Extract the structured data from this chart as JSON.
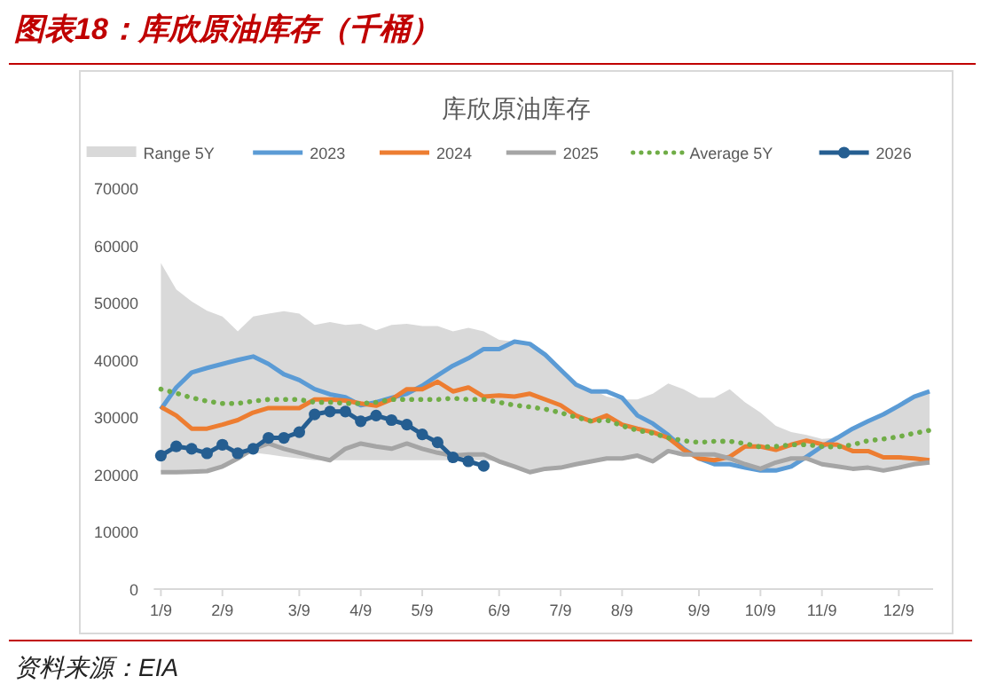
{
  "chart_data": {
    "type": "line",
    "title": "图表18：库欣原油库存（千桶）",
    "subtitle": "库欣原油库存",
    "annotations": [
      "资料来源：EIA"
    ],
    "categories": [
      "1/9",
      null,
      null,
      null,
      "2/9",
      null,
      null,
      null,
      null,
      "3/9",
      null,
      null,
      null,
      "4/9",
      null,
      null,
      null,
      "5/9",
      null,
      null,
      null,
      null,
      "6/9",
      null,
      null,
      null,
      "7/9",
      null,
      null,
      null,
      "8/9",
      null,
      null,
      null,
      null,
      "9/9",
      null,
      null,
      null,
      "10/9",
      null,
      null,
      null,
      "11/9",
      null,
      null,
      null,
      null,
      "12/9",
      null,
      null
    ],
    "ylim": [
      0,
      70000
    ],
    "yticks": [
      0,
      10000,
      20000,
      30000,
      40000,
      50000,
      60000,
      70000
    ],
    "legend": "top",
    "grid": false,
    "marker": "none",
    "line_style": "solid",
    "series": [
      {
        "name": "Range 5Y",
        "type": "area",
        "color": "#d9d9d9",
        "values": [
          null,
          null,
          null,
          null,
          null,
          null,
          null,
          null,
          null,
          null,
          null,
          null,
          null,
          null,
          null,
          null,
          null,
          null,
          null,
          null,
          null,
          null,
          null,
          null,
          null,
          null,
          null,
          null,
          null,
          null,
          null,
          null,
          null,
          null,
          null,
          null,
          null,
          null,
          null,
          null,
          null,
          null,
          null,
          null,
          null,
          null,
          null,
          null,
          null,
          null,
          null
        ],
        "lower": [
          20400,
          20400,
          20500,
          20600,
          21400,
          22800,
          23800,
          23500,
          23100,
          22800,
          22500,
          22500,
          22500,
          22500,
          22500,
          22500,
          22500,
          22500,
          22500,
          22500,
          22500,
          22500,
          22300,
          21400,
          20400,
          21000,
          21200,
          21800,
          22300,
          22800,
          22800,
          23300,
          22300,
          24100,
          23500,
          22800,
          21800,
          21800,
          21200,
          20700,
          20700,
          21400,
          22800,
          21800,
          21400,
          21000,
          21200,
          20700,
          21200,
          21800,
          22100
        ],
        "upper": [
          56900,
          52300,
          50200,
          48600,
          47600,
          45000,
          47600,
          48100,
          48500,
          48100,
          46100,
          46600,
          46100,
          46300,
          45200,
          46100,
          46300,
          45900,
          45900,
          45000,
          45600,
          45000,
          43500,
          43200,
          42800,
          40900,
          38300,
          35700,
          34900,
          33600,
          33100,
          33100,
          34100,
          35900,
          34900,
          33400,
          33400,
          34900,
          32600,
          30800,
          28500,
          27400,
          26900,
          26200,
          26400,
          28000,
          29300,
          30500,
          32000,
          33600,
          34500
        ]
      },
      {
        "name": "2023",
        "color": "#5b9bd5",
        "values": [
          31400,
          35200,
          37800,
          38600,
          39300,
          40000,
          40600,
          39300,
          37500,
          36500,
          34900,
          34000,
          33500,
          32100,
          32600,
          33400,
          34100,
          35500,
          37300,
          39000,
          40300,
          41900,
          41900,
          43200,
          42800,
          40900,
          38300,
          35700,
          34500,
          34500,
          33400,
          30300,
          28900,
          26900,
          24500,
          22800,
          21800,
          21800,
          21200,
          20700,
          20700,
          21400,
          23100,
          24900,
          26400,
          28000,
          29300,
          30500,
          32000,
          33600,
          34500
        ]
      },
      {
        "name": "2024",
        "color": "#ed7d31",
        "values": [
          31800,
          30300,
          28000,
          28000,
          28700,
          29500,
          30800,
          31600,
          31600,
          31600,
          33100,
          33100,
          32900,
          32400,
          32000,
          33100,
          34900,
          34900,
          36200,
          34500,
          35200,
          33600,
          33800,
          33600,
          34100,
          33100,
          32100,
          30300,
          29300,
          30300,
          28700,
          28000,
          27400,
          26400,
          24300,
          22800,
          22500,
          23100,
          24900,
          24900,
          24300,
          25200,
          25900,
          25300,
          25200,
          24100,
          24100,
          23000,
          23000,
          22800,
          22500
        ]
      },
      {
        "name": "2025",
        "color": "#a5a5a5",
        "values": [
          20400,
          20400,
          20500,
          20600,
          21400,
          22800,
          24500,
          25400,
          24500,
          23800,
          23100,
          22500,
          24500,
          25400,
          24900,
          24500,
          25400,
          24500,
          23800,
          23300,
          23500,
          23500,
          22300,
          21400,
          20400,
          21000,
          21200,
          21800,
          22300,
          22800,
          22800,
          23300,
          22300,
          24100,
          23500,
          23500,
          23500,
          22800,
          21800,
          21000,
          22100,
          22800,
          22800,
          21800,
          21400,
          21000,
          21200,
          20700,
          21200,
          21800,
          22100
        ]
      },
      {
        "name": "Average 5Y",
        "color": "#70ad47",
        "line_style": "dotted",
        "values": [
          34900,
          34200,
          33400,
          32800,
          32400,
          32400,
          32800,
          33100,
          33100,
          33100,
          32600,
          32600,
          32400,
          32400,
          32600,
          33100,
          33100,
          33100,
          33100,
          33300,
          33100,
          33100,
          32600,
          32100,
          31800,
          31400,
          30800,
          30000,
          29300,
          29500,
          28500,
          27700,
          27200,
          26400,
          25900,
          25600,
          25800,
          25800,
          25400,
          24800,
          24900,
          25200,
          25200,
          24900,
          24800,
          25200,
          25900,
          26200,
          26600,
          27200,
          27700
        ]
      },
      {
        "name": "2026",
        "color": "#255e91",
        "marker": "circle",
        "values": [
          23300,
          24900,
          24500,
          23700,
          25200,
          23700,
          24500,
          26400,
          26400,
          27400,
          30500,
          31000,
          31000,
          29300,
          30300,
          29500,
          28700,
          27000,
          25600,
          23000,
          22300,
          21500,
          null,
          null,
          null,
          null,
          null,
          null,
          null,
          null,
          null,
          null,
          null,
          null,
          null,
          null,
          null,
          null,
          null,
          null,
          null,
          null,
          null,
          null,
          null,
          null,
          null,
          null,
          null,
          null,
          null
        ]
      }
    ]
  }
}
